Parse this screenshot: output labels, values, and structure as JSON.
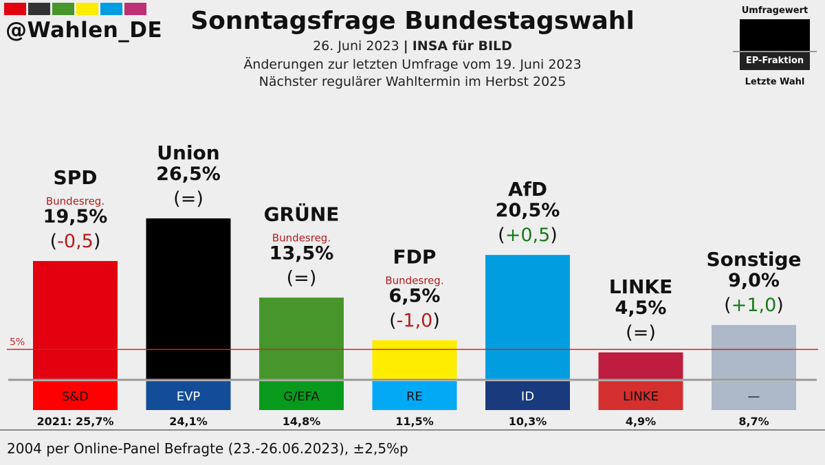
{
  "brand": {
    "handle": "@Wahlen_DE",
    "stripe_colors": [
      "#e3000f",
      "#333333",
      "#46962b",
      "#ffed00",
      "#009ee0",
      "#be3075"
    ]
  },
  "header": {
    "title": "Sonntagsfrage Bundestagswahl",
    "date": "26. Juni 2023",
    "separator": "|",
    "institute": "INSA für BILD",
    "line2": "Änderungen zur letzten Umfrage vom 19. Juni 2023",
    "line3": "Nächster regulärer Wahltermin im Herbst 2025"
  },
  "legend": {
    "top": "Umfragewert",
    "middle": "EP-Fraktion",
    "bottom": "Letzte Wahl"
  },
  "footer": {
    "text": "2004 per Online-Panel Befragte (23.-26.06.2023), ±2,5%p"
  },
  "chart_data": {
    "type": "bar",
    "ylim": [
      0,
      30
    ],
    "threshold": {
      "value": 5,
      "label": "5%",
      "color": "#c62828"
    },
    "categories": [
      "SPD",
      "Union",
      "GRÜNE",
      "FDP",
      "AfD",
      "LINKE",
      "Sonstige"
    ],
    "values": [
      19.5,
      26.5,
      13.5,
      6.5,
      20.5,
      4.5,
      9.0
    ],
    "series": [
      {
        "name": "SPD",
        "value": 19.5,
        "value_label": "19,5%",
        "change": "-0,5",
        "change_sign": "neg",
        "gov": "Bundesreg.",
        "color": "#e3000f",
        "group": "S&D",
        "group_color": "#ff0000",
        "group_text": "#111111",
        "last": "2021: 25,7%"
      },
      {
        "name": "Union",
        "value": 26.5,
        "value_label": "26,5%",
        "change": "=",
        "change_sign": "zero",
        "gov": "",
        "color": "#000000",
        "group": "EVP",
        "group_color": "#144d97",
        "group_text": "#ffffff",
        "last": "24,1%"
      },
      {
        "name": "GRÜNE",
        "value": 13.5,
        "value_label": "13,5%",
        "change": "=",
        "change_sign": "zero",
        "gov": "Bundesreg.",
        "color": "#46962b",
        "group": "G/EFA",
        "group_color": "#079a1c",
        "group_text": "#111111",
        "last": "14,8%"
      },
      {
        "name": "FDP",
        "value": 6.5,
        "value_label": "6,5%",
        "change": "-1,0",
        "change_sign": "neg",
        "gov": "Bundesreg.",
        "color": "#ffed00",
        "group": "RE",
        "group_color": "#03a9f4",
        "group_text": "#111111",
        "last": "11,5%"
      },
      {
        "name": "AfD",
        "value": 20.5,
        "value_label": "20,5%",
        "change": "+0,5",
        "change_sign": "pos",
        "gov": "",
        "color": "#009ee0",
        "group": "ID",
        "group_color": "#193a7d",
        "group_text": "#ffffff",
        "last": "10,3%"
      },
      {
        "name": "LINKE",
        "value": 4.5,
        "value_label": "4,5%",
        "change": "=",
        "change_sign": "zero",
        "gov": "",
        "color": "#be1d3f",
        "group": "LINKE",
        "group_color": "#d32f2f",
        "group_text": "#111111",
        "last": "4,9%"
      },
      {
        "name": "Sonstige",
        "value": 9.0,
        "value_label": "9,0%",
        "change": "+1,0",
        "change_sign": "pos",
        "gov": "",
        "color": "#adb8c9",
        "group": "—",
        "group_color": "#adb8c9",
        "group_text": "#111111",
        "last": "8,7%"
      }
    ],
    "change_colors": {
      "neg": "#b71c1c",
      "pos": "#1b7a1b",
      "zero": "#111111"
    }
  }
}
